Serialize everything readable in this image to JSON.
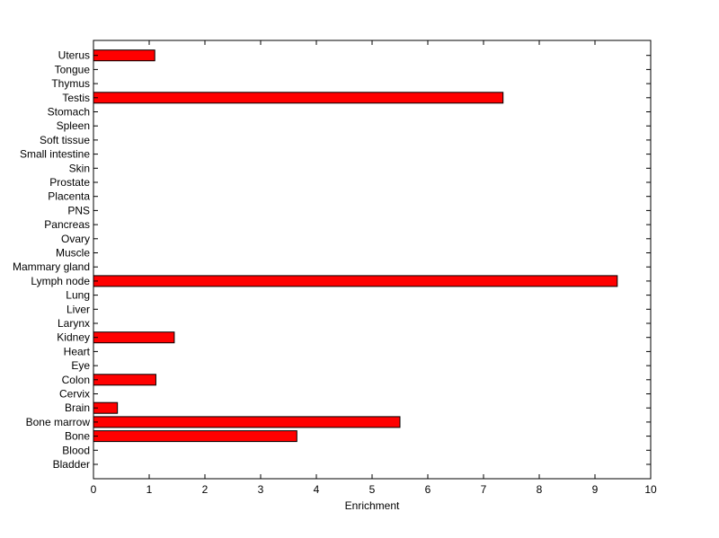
{
  "chart_data": {
    "type": "bar",
    "orientation": "horizontal",
    "title": "",
    "xlabel": "Enrichment",
    "ylabel": "",
    "xlim": [
      0,
      10
    ],
    "xticks": [
      0,
      1,
      2,
      3,
      4,
      5,
      6,
      7,
      8,
      9,
      10
    ],
    "grid": false,
    "legend": "none",
    "colors": {
      "bar_fill": "#ff0000",
      "bar_edge": "#000000",
      "axis": "#000000",
      "background": "#ffffff"
    },
    "categories": [
      "Bladder",
      "Blood",
      "Bone",
      "Bone marrow",
      "Brain",
      "Cervix",
      "Colon",
      "Eye",
      "Heart",
      "Kidney",
      "Larynx",
      "Liver",
      "Lung",
      "Lymph node",
      "Mammary gland",
      "Muscle",
      "Ovary",
      "Pancreas",
      "PNS",
      "Placenta",
      "Prostate",
      "Skin",
      "Small intestine",
      "Soft tissue",
      "Spleen",
      "Stomach",
      "Testis",
      "Thymus",
      "Tongue",
      "Uterus"
    ],
    "values": [
      0,
      0,
      3.65,
      5.5,
      0.43,
      0,
      1.12,
      0,
      0,
      1.45,
      0,
      0,
      0,
      9.4,
      0,
      0,
      0,
      0,
      0,
      0,
      0,
      0,
      0,
      0,
      0,
      0,
      7.35,
      0,
      0,
      1.1
    ]
  }
}
